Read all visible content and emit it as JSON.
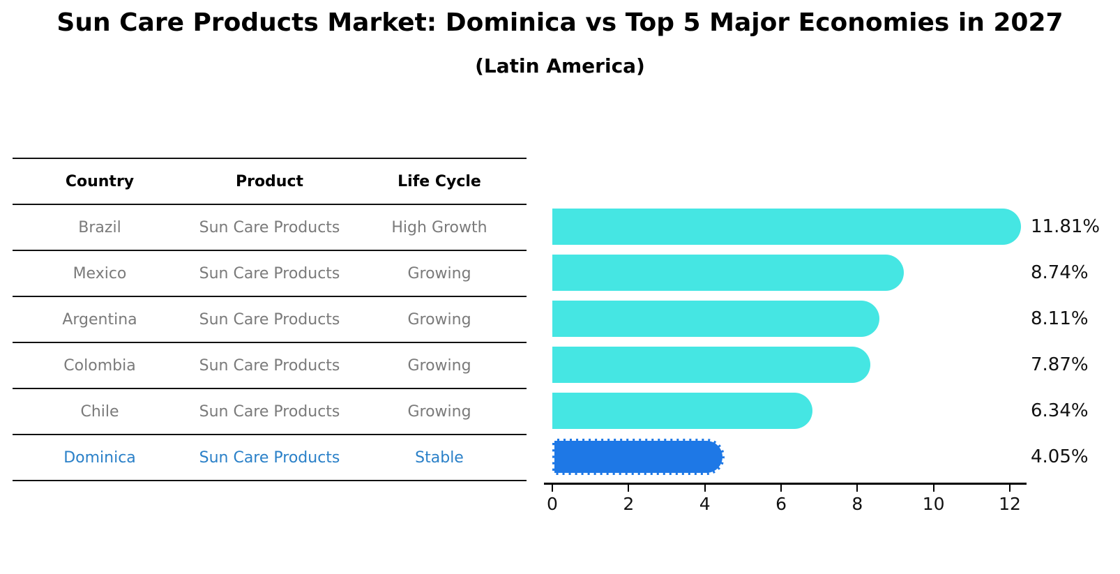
{
  "header": {
    "title": "Sun Care Products Market: Dominica vs Top 5 Major Economies in 2027",
    "subtitle": "(Latin America)"
  },
  "table": {
    "headers": [
      "Country",
      "Product",
      "Life Cycle"
    ],
    "rows": [
      {
        "country": "Brazil",
        "product": "Sun Care Products",
        "life_cycle": "High Growth",
        "highlight": false
      },
      {
        "country": "Mexico",
        "product": "Sun Care Products",
        "life_cycle": "Growing",
        "highlight": false
      },
      {
        "country": "Argentina",
        "product": "Sun Care Products",
        "life_cycle": "Growing",
        "highlight": false
      },
      {
        "country": "Colombia",
        "product": "Sun Care Products",
        "life_cycle": "Growing",
        "highlight": false
      },
      {
        "country": "Chile",
        "product": "Sun Care Products",
        "life_cycle": "Growing",
        "highlight": false
      },
      {
        "country": "Dominica",
        "product": "Sun Care Products",
        "life_cycle": "Stable",
        "highlight": true
      }
    ]
  },
  "chart_data": {
    "type": "bar",
    "orientation": "horizontal",
    "title": "Sun Care Products Market: Dominica vs Top 5 Major Economies in 2027",
    "subtitle": "(Latin America)",
    "categories": [
      "Brazil",
      "Mexico",
      "Argentina",
      "Colombia",
      "Chile",
      "Dominica"
    ],
    "values": [
      11.81,
      8.74,
      8.11,
      7.87,
      6.34,
      4.05
    ],
    "value_labels": [
      "11.81%",
      "8.74%",
      "8.11%",
      "7.87%",
      "6.34%",
      "4.05%"
    ],
    "xticks": [
      0,
      2,
      4,
      6,
      8,
      10,
      12
    ],
    "xlim": [
      0,
      12.65
    ],
    "grid": false,
    "legend": "none",
    "highlight_index": 5,
    "colors": {
      "bar_default": "#45e6e3",
      "bar_highlight": "#1e78e6",
      "table_text": "#7a7a7a",
      "highlight_text": "#2a80c8",
      "axis": "#000000",
      "label_text": "#111111"
    }
  }
}
